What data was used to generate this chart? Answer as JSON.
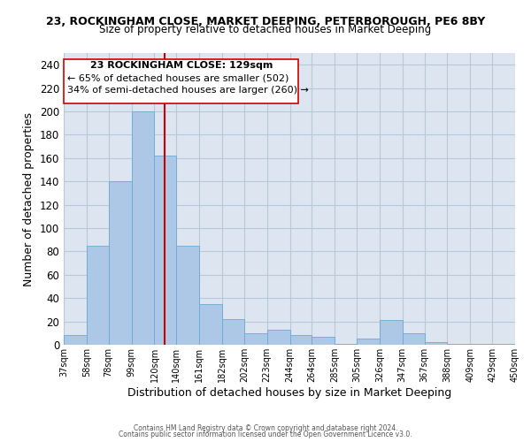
{
  "title": "23, ROCKINGHAM CLOSE, MARKET DEEPING, PETERBOROUGH, PE6 8BY",
  "subtitle": "Size of property relative to detached houses in Market Deeping",
  "xlabel": "Distribution of detached houses by size in Market Deeping",
  "ylabel": "Number of detached properties",
  "bar_color": "#adc8e6",
  "bar_edge_color": "#6aaad4",
  "bg_color": "#dde6f0",
  "grid_color": "#b8c8d8",
  "vline_x": 129,
  "vline_color": "#cc0000",
  "annotation_title": "23 ROCKINGHAM CLOSE: 129sqm",
  "annotation_line2": "← 65% of detached houses are smaller (502)",
  "annotation_line3": "34% of semi-detached houses are larger (260) →",
  "bin_edges": [
    37,
    58,
    78,
    99,
    120,
    140,
    161,
    182,
    202,
    223,
    244,
    264,
    285,
    305,
    326,
    347,
    367,
    388,
    409,
    429,
    450
  ],
  "bar_heights": [
    8,
    85,
    140,
    200,
    162,
    85,
    35,
    22,
    10,
    13,
    8,
    7,
    1,
    5,
    21,
    10,
    2,
    1,
    1,
    1
  ],
  "tick_labels": [
    "37sqm",
    "58sqm",
    "78sqm",
    "99sqm",
    "120sqm",
    "140sqm",
    "161sqm",
    "182sqm",
    "202sqm",
    "223sqm",
    "244sqm",
    "264sqm",
    "285sqm",
    "305sqm",
    "326sqm",
    "347sqm",
    "367sqm",
    "388sqm",
    "409sqm",
    "429sqm",
    "450sqm"
  ],
  "ylim": [
    0,
    250
  ],
  "yticks": [
    0,
    20,
    40,
    60,
    80,
    100,
    120,
    140,
    160,
    180,
    200,
    220,
    240
  ],
  "footer1": "Contains HM Land Registry data © Crown copyright and database right 2024.",
  "footer2": "Contains public sector information licensed under the Open Government Licence v3.0."
}
